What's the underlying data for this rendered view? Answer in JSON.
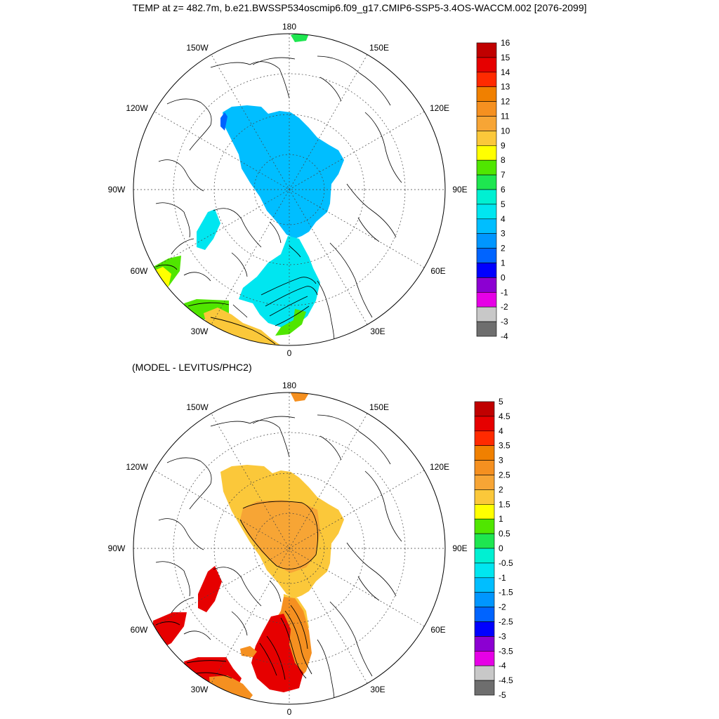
{
  "title": "TEMP at z= 482.7m, b.e21.BWSSP534oscmip6.f09_g17.CMIP6-SSP5-3.4OS-WACCM.002 [2076-2099]",
  "subtitle": "(MODEL - LEVITUS/PHC2)",
  "longitude_labels": {
    "lon_180": "180",
    "lon_150E": "150E",
    "lon_120E": "120E",
    "lon_90E": "90E",
    "lon_60E": "60E",
    "lon_30E": "30E",
    "lon_0": "0",
    "lon_30W": "30W",
    "lon_60W": "60W",
    "lon_90W": "90W",
    "lon_120W": "120W",
    "lon_150W": "150W"
  },
  "colorbar_top": {
    "labels": [
      "16",
      "15",
      "14",
      "13",
      "12",
      "11",
      "10",
      "9",
      "8",
      "7",
      "6",
      "5",
      "4",
      "3",
      "2",
      "1",
      "0",
      "-1",
      "-2",
      "-3",
      "-4"
    ],
    "colors": [
      "#c00000",
      "#e60000",
      "#ff2a00",
      "#f08000",
      "#f59020",
      "#f7a535",
      "#fbc83a",
      "#ffff00",
      "#50e600",
      "#1ee650",
      "#00f0d2",
      "#00e6f0",
      "#00beff",
      "#0096ff",
      "#0064ff",
      "#0000ff",
      "#8c00d2",
      "#e600e6",
      "#c8c8c8",
      "#6e6e6e"
    ]
  },
  "colorbar_bottom": {
    "labels": [
      "5",
      "4.5",
      "4",
      "3.5",
      "3",
      "2.5",
      "2",
      "1.5",
      "1",
      "0.5",
      "0",
      "-0.5",
      "-1",
      "-1.5",
      "-2",
      "-2.5",
      "-3",
      "-3.5",
      "-4",
      "-4.5",
      "-5"
    ],
    "colors": [
      "#c00000",
      "#e60000",
      "#ff2a00",
      "#f08000",
      "#f59020",
      "#f7a535",
      "#fbc83a",
      "#ffff00",
      "#50e600",
      "#1ee650",
      "#00f0d2",
      "#00e6f0",
      "#00beff",
      "#0096ff",
      "#0064ff",
      "#0000ff",
      "#8c00d2",
      "#e600e6",
      "#c8c8c8",
      "#6e6e6e"
    ]
  },
  "colors": {
    "top_arctic": "#00beff",
    "top_atlantic": "#00e6f0",
    "top_green": "#50e600",
    "top_orange": "#fbc83a",
    "bottom_outer": "#fbc83a",
    "bottom_inner": "#f7a535",
    "bottom_red": "#e60000",
    "bottom_orange": "#f59020"
  }
}
